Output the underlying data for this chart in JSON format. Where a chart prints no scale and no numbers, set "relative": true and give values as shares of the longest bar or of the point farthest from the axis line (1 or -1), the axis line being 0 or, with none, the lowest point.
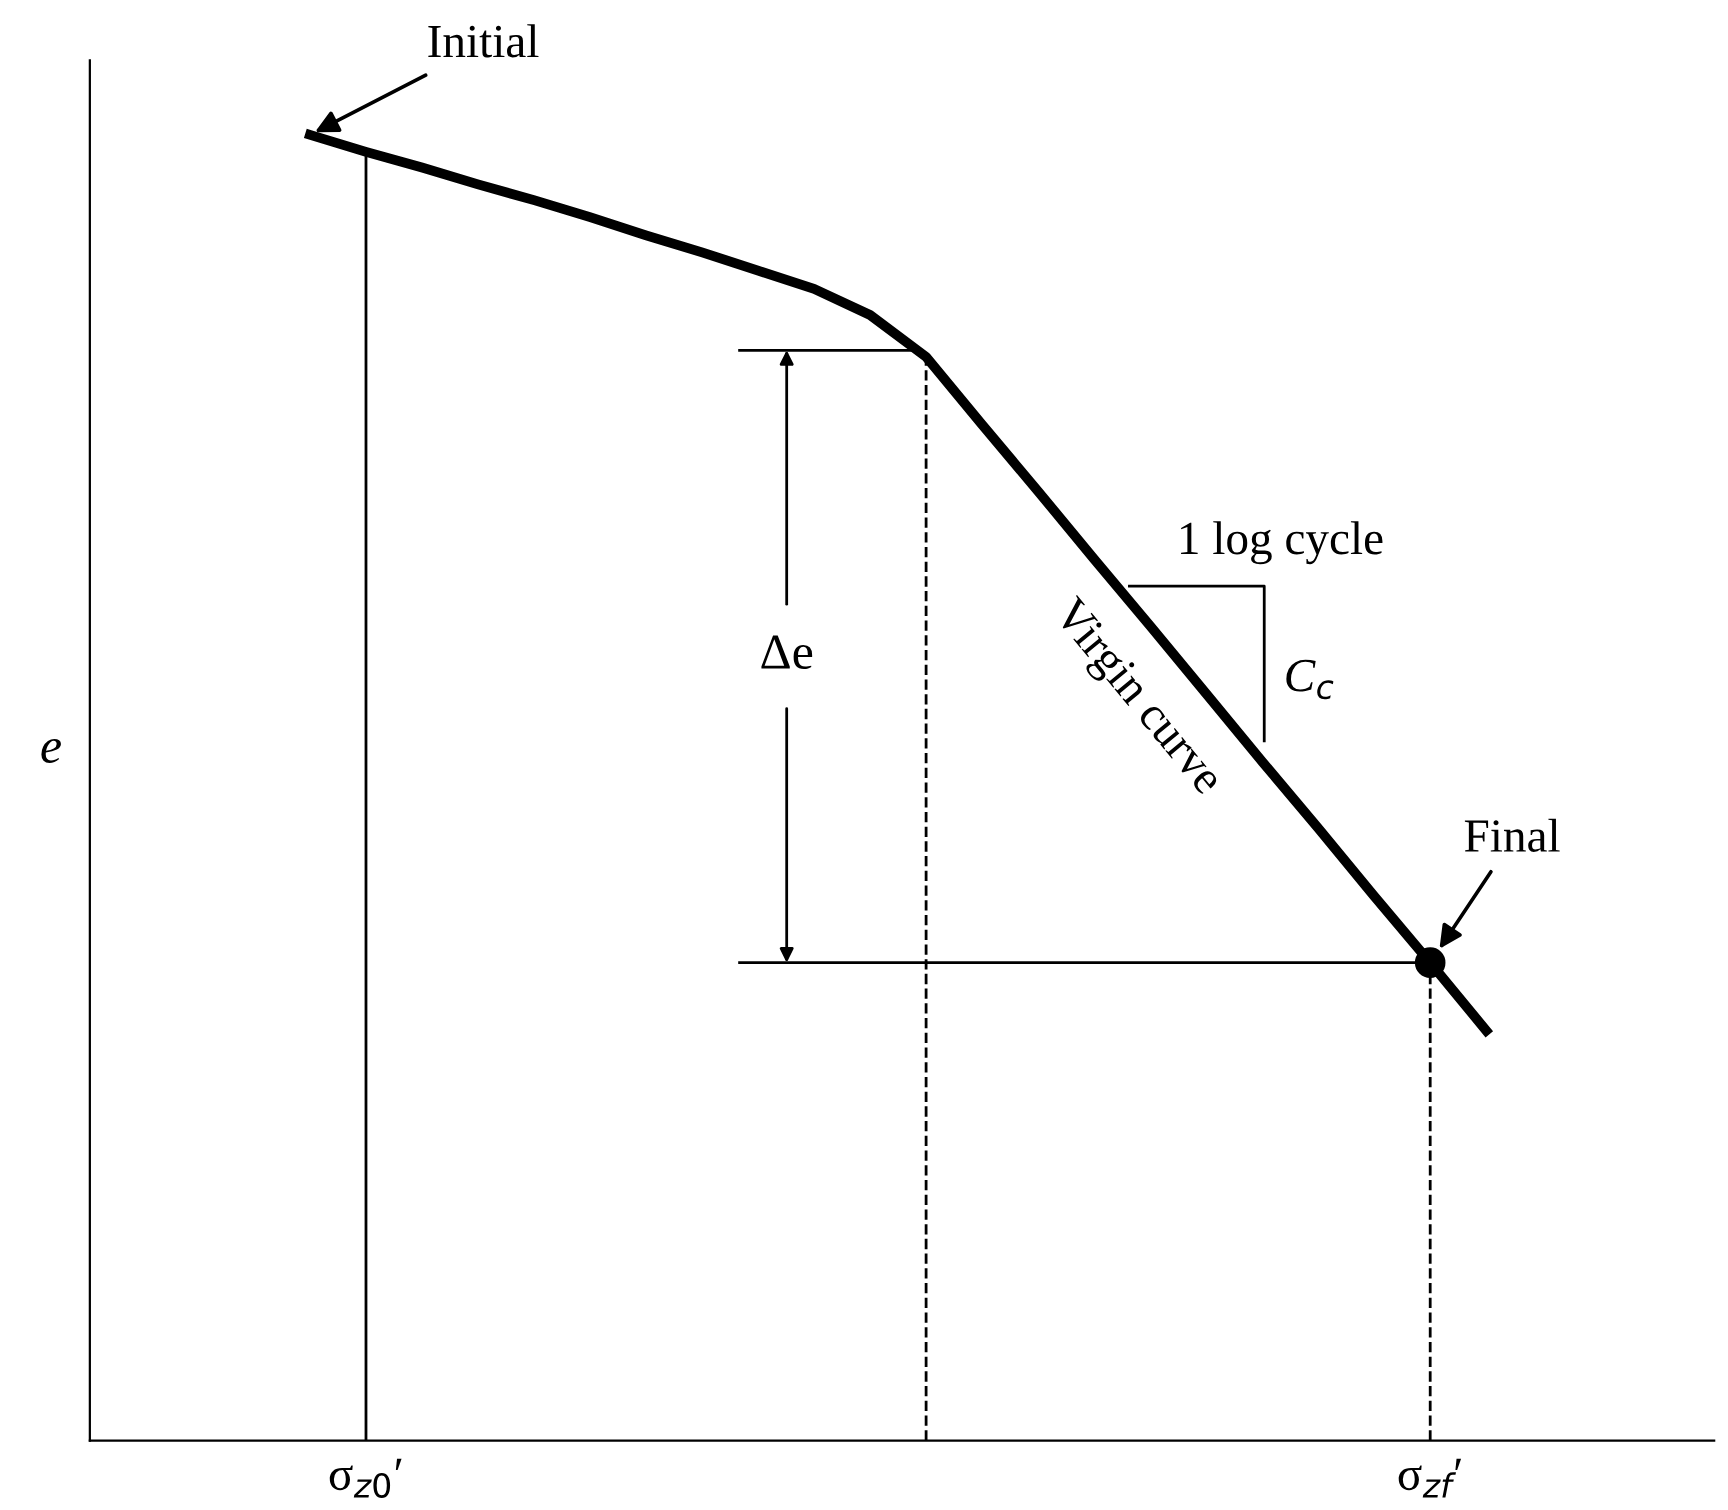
{
  "chart_data": {
    "type": "line",
    "relative": true,
    "ylabel": "e",
    "categories": [
      null,
      "σ$_{z0}$′",
      null,
      null,
      null,
      null,
      null,
      null,
      null,
      null,
      null,
      null,
      null,
      null,
      null,
      null,
      null,
      null,
      null,
      null,
      "σ$_{zf}$′",
      null
    ],
    "series": [
      {
        "color": "#000000",
        "values": [
          1.0,
          0.987,
          0.975,
          0.962,
          0.95,
          0.937,
          0.923,
          0.91,
          0.896,
          0.882,
          0.862,
          0.83,
          0.778,
          0.727,
          0.675,
          0.624,
          0.572,
          0.52,
          0.469,
          0.417,
          0.366,
          0.314
        ]
      }
    ],
    "ref_lines": [
      {
        "axis": "x",
        "value": "σ$_{z0}$′",
        "line_style": "solid"
      },
      {
        "axis": "x",
        "value": "σ$_{zf}$′",
        "line_style": "dashed"
      },
      {
        "axis": "y",
        "value": 0.835,
        "line_style": "solid"
      },
      {
        "axis": "y",
        "value": 0.366,
        "line_style": "solid"
      }
    ],
    "annotations": [
      "Initial",
      {
        "text": "Final",
        "x": "σ$_{zf}$′",
        "y": 0.366
      },
      "Δe",
      "Virgin curve",
      "1 log cycle",
      "C$_{c}$"
    ],
    "grid": false,
    "legend": false,
    "line_style": "solid"
  }
}
